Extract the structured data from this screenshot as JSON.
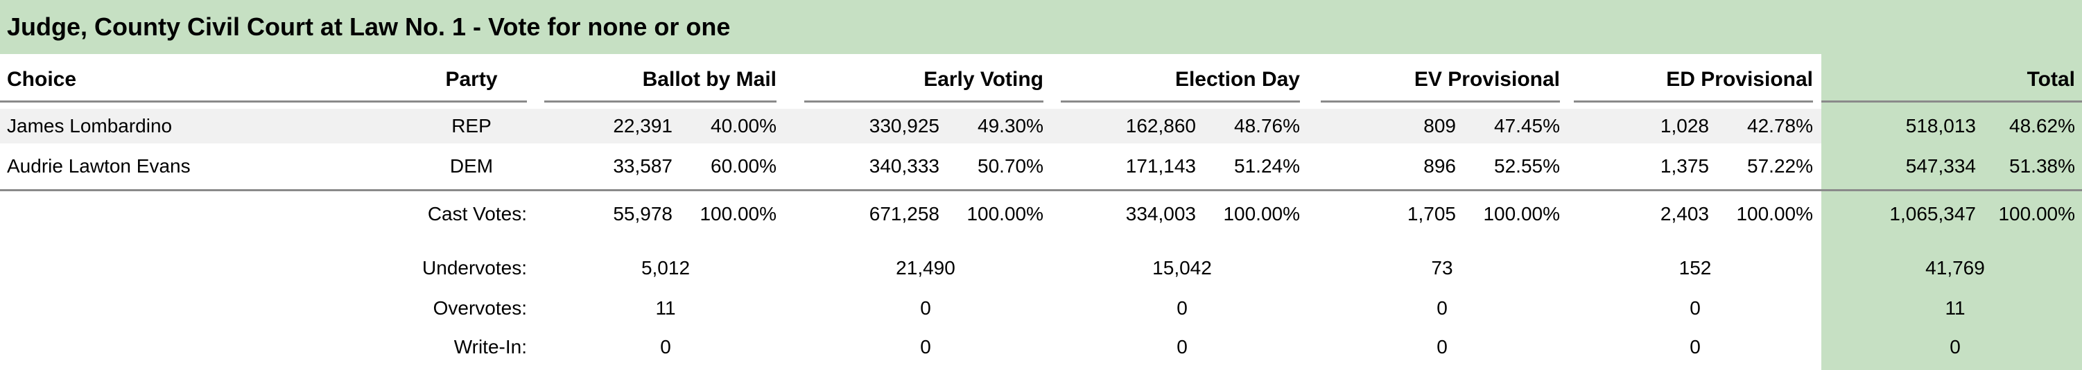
{
  "title": "Judge, County Civil Court at Law No. 1 - Vote for none or one",
  "headers": {
    "choice": "Choice",
    "party": "Party",
    "ballot_by_mail": "Ballot by Mail",
    "early_voting": "Early Voting",
    "election_day": "Election Day",
    "ev_provisional": "EV Provisional",
    "ed_provisional": "ED Provisional",
    "total": "Total"
  },
  "candidates": [
    {
      "name": "James Lombardino",
      "party": "REP",
      "ballot_by_mail": {
        "votes": "22,391",
        "pct": "40.00%"
      },
      "early_voting": {
        "votes": "330,925",
        "pct": "49.30%"
      },
      "election_day": {
        "votes": "162,860",
        "pct": "48.76%"
      },
      "ev_provisional": {
        "votes": "809",
        "pct": "47.45%"
      },
      "ed_provisional": {
        "votes": "1,028",
        "pct": "42.78%"
      },
      "total": {
        "votes": "518,013",
        "pct": "48.62%"
      }
    },
    {
      "name": "Audrie Lawton Evans",
      "party": "DEM",
      "ballot_by_mail": {
        "votes": "33,587",
        "pct": "60.00%"
      },
      "early_voting": {
        "votes": "340,333",
        "pct": "50.70%"
      },
      "election_day": {
        "votes": "171,143",
        "pct": "51.24%"
      },
      "ev_provisional": {
        "votes": "896",
        "pct": "52.55%"
      },
      "ed_provisional": {
        "votes": "1,375",
        "pct": "57.22%"
      },
      "total": {
        "votes": "547,334",
        "pct": "51.38%"
      }
    }
  ],
  "cast_votes": {
    "label": "Cast Votes:",
    "ballot_by_mail": {
      "votes": "55,978",
      "pct": "100.00%"
    },
    "early_voting": {
      "votes": "671,258",
      "pct": "100.00%"
    },
    "election_day": {
      "votes": "334,003",
      "pct": "100.00%"
    },
    "ev_provisional": {
      "votes": "1,705",
      "pct": "100.00%"
    },
    "ed_provisional": {
      "votes": "2,403",
      "pct": "100.00%"
    },
    "total": {
      "votes": "1,065,347",
      "pct": "100.00%"
    }
  },
  "summary": [
    {
      "label": "Undervotes:",
      "ballot_by_mail": "5,012",
      "early_voting": "21,490",
      "election_day": "15,042",
      "ev_provisional": "73",
      "ed_provisional": "152",
      "total": "41,769"
    },
    {
      "label": "Overvotes:",
      "ballot_by_mail": "11",
      "early_voting": "0",
      "election_day": "0",
      "ev_provisional": "0",
      "ed_provisional": "0",
      "total": "11"
    },
    {
      "label": "Write-In:",
      "ballot_by_mail": "0",
      "early_voting": "0",
      "election_day": "0",
      "ev_provisional": "0",
      "ed_provisional": "0",
      "total": "0"
    }
  ],
  "colors": {
    "title_background": "#c6e0c3",
    "total_column": "#c6e0c3",
    "alt_row": "#f1f1f1"
  }
}
